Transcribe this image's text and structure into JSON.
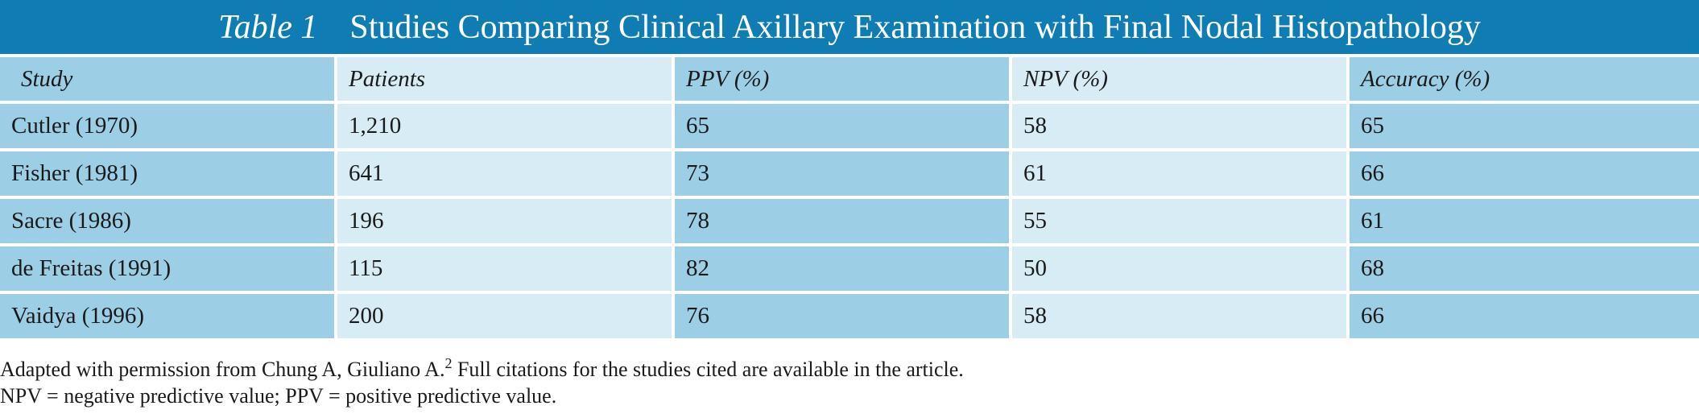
{
  "title": {
    "label": "Table 1",
    "text": "Studies Comparing Clinical Axillary Examination with Final Nodal Histopathology"
  },
  "table": {
    "header": [
      "Study",
      "Patients",
      "PPV (%)",
      "NPV (%)",
      "Accuracy (%)"
    ],
    "rows": [
      [
        "Cutler (1970)",
        "1,210",
        "65",
        "58",
        "65"
      ],
      [
        "Fisher (1981)",
        "641",
        "73",
        "61",
        "66"
      ],
      [
        "Sacre (1986)",
        "196",
        "78",
        "55",
        "61"
      ],
      [
        "de Freitas (1991)",
        "115",
        "82",
        "50",
        "68"
      ],
      [
        "Vaidya (1996)",
        "200",
        "76",
        "58",
        "66"
      ]
    ]
  },
  "footnotes": {
    "line1": {
      "before": "Adapted with permission from Chung A, Giuliano A.",
      "sup": "2",
      "after": " Full citations for the studies cited are available in the article."
    },
    "line2": "NPV = negative predictive value; PPV = positive predictive value."
  }
}
